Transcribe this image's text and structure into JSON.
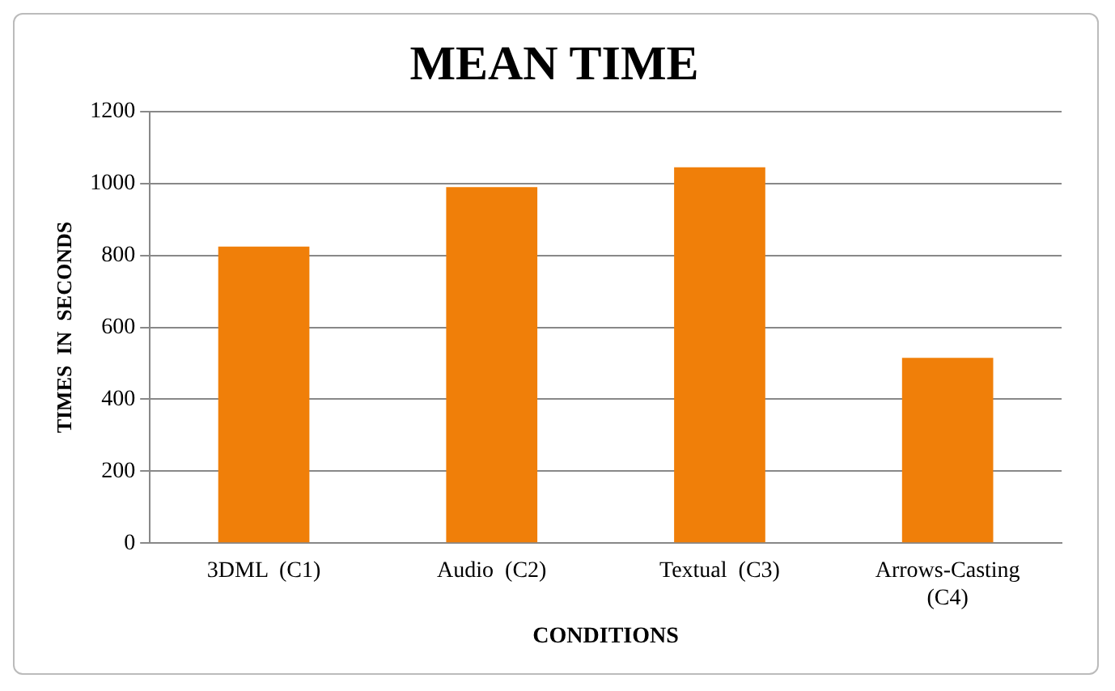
{
  "chart_data": {
    "type": "bar",
    "title": "MEAN TIME",
    "xlabel": "CONDITIONS",
    "ylabel": "TIMES  IN  SECONDS",
    "categories": [
      "3DML  (C1)",
      "Audio  (C2)",
      "Textual  (C3)",
      "Arrows-Casting (C4)"
    ],
    "values": [
      825,
      990,
      1045,
      515
    ],
    "color": "#f07f09",
    "ylim": [
      0,
      1200
    ],
    "yticks": [
      0,
      200,
      400,
      600,
      800,
      1000,
      1200
    ],
    "grid": "y"
  }
}
